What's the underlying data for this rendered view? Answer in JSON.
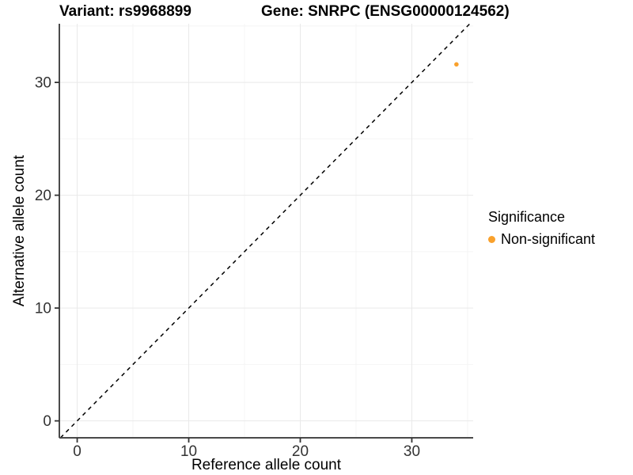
{
  "chart_data": {
    "type": "scatter",
    "title_left": "Variant: rs9968899",
    "title_right": "Gene: SNRPC (ENSG00000124562)",
    "xlabel": "Reference allele count",
    "ylabel": "Alternative allele count",
    "xlim": [
      -1.6,
      35.5
    ],
    "ylim": [
      -1.5,
      35.2
    ],
    "x_ticks": [
      0,
      10,
      20,
      30
    ],
    "y_ticks": [
      0,
      10,
      20,
      30
    ],
    "x_minor_ticks": [
      5,
      15,
      25,
      35
    ],
    "y_minor_ticks": [
      5,
      15,
      25,
      35
    ],
    "grid": true,
    "legend_position": "right",
    "series": [
      {
        "name": "Non-significant",
        "color": "#F9A12C",
        "points": [
          {
            "x": 34,
            "y": 31.6
          }
        ]
      }
    ],
    "reference_line": {
      "type": "identity y = x",
      "style": "dashed",
      "color": "#000000"
    },
    "legend": {
      "title": "Significance",
      "items": [
        {
          "label": "Non-significant",
          "color": "#F9A12C"
        }
      ]
    },
    "style": {
      "background": "#ffffff",
      "axis_line_color": "#4a4a4a",
      "tick_color": "#333333",
      "tick_label_color": "#333333",
      "grid_major_color": "#e9e9e9",
      "grid_minor_color": "#f4f4f4",
      "point_radius_px": 2.8,
      "legend_key_radius_px": 4.5
    }
  }
}
